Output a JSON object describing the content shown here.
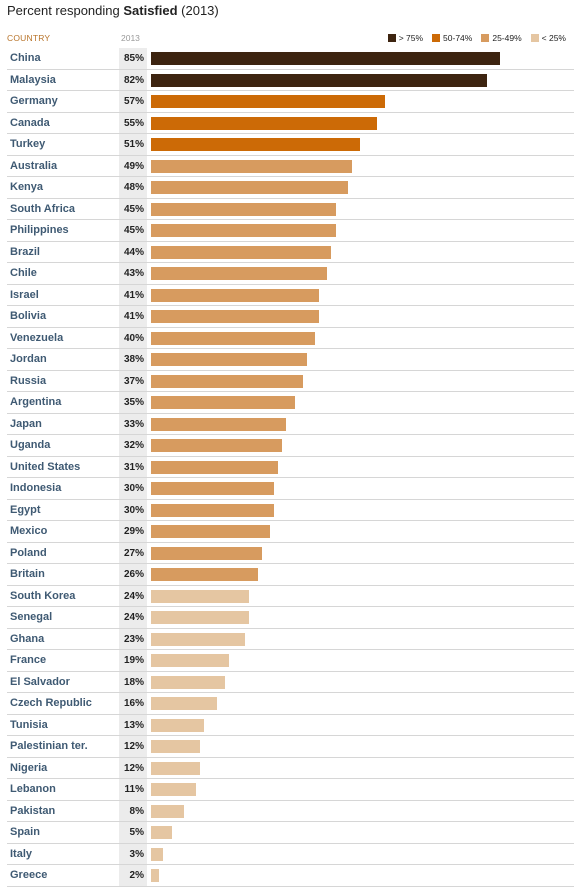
{
  "title": {
    "prefix": "Percent responding ",
    "bold": "Satisfied",
    "suffix": " (2013)"
  },
  "header": {
    "country": "COUNTRY",
    "year": "2013"
  },
  "legend": [
    {
      "label": "> 75%",
      "color": "#3d2410"
    },
    {
      "label": "50-74%",
      "color": "#cc6a06"
    },
    {
      "label": "25-49%",
      "color": "#d79b5f"
    },
    {
      "label": "< 25%",
      "color": "#e5c6a2"
    }
  ],
  "chart_data": {
    "type": "bar",
    "orientation": "horizontal",
    "xlim": [
      0,
      100
    ],
    "categories": [
      "China",
      "Malaysia",
      "Germany",
      "Canada",
      "Turkey",
      "Australia",
      "Kenya",
      "South Africa",
      "Philippines",
      "Brazil",
      "Chile",
      "Israel",
      "Bolivia",
      "Venezuela",
      "Jordan",
      "Russia",
      "Argentina",
      "Japan",
      "Uganda",
      "United States",
      "Indonesia",
      "Egypt",
      "Mexico",
      "Poland",
      "Britain",
      "South Korea",
      "Senegal",
      "Ghana",
      "France",
      "El Salvador",
      "Czech Republic",
      "Tunisia",
      "Palestinian ter.",
      "Nigeria",
      "Lebanon",
      "Pakistan",
      "Spain",
      "Italy",
      "Greece"
    ],
    "values": [
      85,
      82,
      57,
      55,
      51,
      49,
      48,
      45,
      45,
      44,
      43,
      41,
      41,
      40,
      38,
      37,
      35,
      33,
      32,
      31,
      30,
      30,
      29,
      27,
      26,
      24,
      24,
      23,
      19,
      18,
      16,
      13,
      12,
      12,
      11,
      8,
      5,
      3,
      2
    ],
    "value_labels": [
      "85%",
      "82%",
      "57%",
      "55%",
      "51%",
      "49%",
      "48%",
      "45%",
      "45%",
      "44%",
      "43%",
      "41%",
      "41%",
      "40%",
      "38%",
      "37%",
      "35%",
      "33%",
      "32%",
      "31%",
      "30%",
      "30%",
      "29%",
      "27%",
      "26%",
      "24%",
      "24%",
      "23%",
      "19%",
      "18%",
      "16%",
      "13%",
      "12%",
      "12%",
      "11%",
      "8%",
      "5%",
      "3%",
      "2%"
    ]
  }
}
